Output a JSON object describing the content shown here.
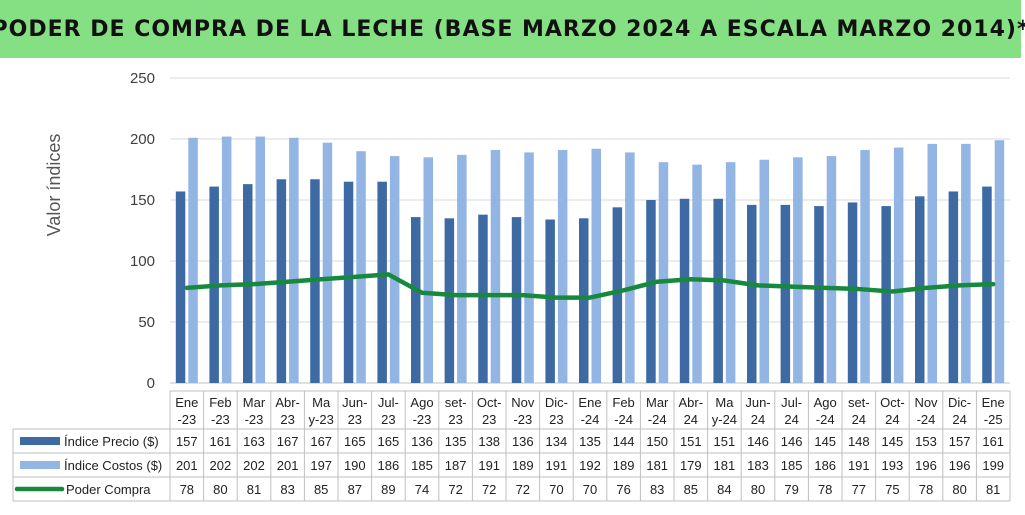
{
  "title": "PODER DE COMPRA DE LA LECHE (BASE MARZO 2024 A ESCALA MARZO 2014)*",
  "chart_data": {
    "type": "bar",
    "ylabel": "Valor índices",
    "ylim": [
      0,
      250
    ],
    "yticks": [
      0,
      50,
      100,
      150,
      200,
      250
    ],
    "grid": true,
    "legend": "data-table",
    "categories": [
      [
        "Ene",
        "-23"
      ],
      [
        "Feb",
        "-23"
      ],
      [
        "Mar",
        "-23"
      ],
      [
        "Abr-",
        "23"
      ],
      [
        "Ma",
        "y-23"
      ],
      [
        "Jun-",
        "23"
      ],
      [
        "Jul-",
        "23"
      ],
      [
        "Ago",
        "-23"
      ],
      [
        "set-",
        "23"
      ],
      [
        "Oct-",
        "23"
      ],
      [
        "Nov",
        "-23"
      ],
      [
        "Dic-",
        "23"
      ],
      [
        "Ene",
        "-24"
      ],
      [
        "Feb",
        "-24"
      ],
      [
        "Mar",
        "-24"
      ],
      [
        "Abr-",
        "24"
      ],
      [
        "Ma",
        "y-24"
      ],
      [
        "Jun-",
        "24"
      ],
      [
        "Jul-",
        "24"
      ],
      [
        "Ago",
        "-24"
      ],
      [
        "set-",
        "24"
      ],
      [
        "Oct-",
        "24"
      ],
      [
        "Nov",
        "-24"
      ],
      [
        "Dic-",
        "24"
      ],
      [
        "Ene",
        "-25"
      ]
    ],
    "series": [
      {
        "name": "Índice Precio ($)",
        "kind": "bar",
        "color": "#3e6aa3",
        "values": [
          157,
          161,
          163,
          167,
          167,
          165,
          165,
          136,
          135,
          138,
          136,
          134,
          135,
          144,
          150,
          151,
          151,
          146,
          146,
          145,
          148,
          145,
          153,
          157,
          161
        ]
      },
      {
        "name": "Índice Costos ($)",
        "kind": "bar",
        "color": "#93b5e3",
        "values": [
          201,
          202,
          202,
          201,
          197,
          190,
          186,
          185,
          187,
          191,
          189,
          191,
          192,
          189,
          181,
          179,
          181,
          183,
          185,
          186,
          191,
          193,
          196,
          196,
          199
        ]
      },
      {
        "name": "Poder Compra",
        "kind": "line",
        "color": "#17893d",
        "values": [
          78,
          80,
          81,
          83,
          85,
          87,
          89,
          74,
          72,
          72,
          72,
          70,
          70,
          76,
          83,
          85,
          84,
          80,
          79,
          78,
          77,
          75,
          78,
          80,
          81
        ]
      }
    ]
  }
}
